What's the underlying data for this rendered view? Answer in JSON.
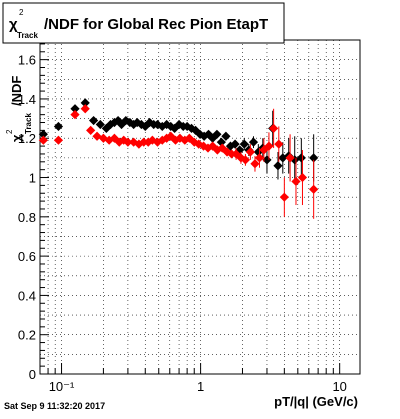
{
  "page": {
    "footer_text": "Sat Sep  9 11:32:20 2017"
  },
  "chart_data": {
    "type": "scatter",
    "title": {
      "chi": "χ",
      "sup": "2",
      "sub": "Track",
      "rest": "/NDF for Global Rec Pion EtapT"
    },
    "xlabel": "pT/|q| (GeV/c)",
    "ylabel": {
      "chi": "χ",
      "sup": "2",
      "sub": "Track",
      "rest": "/NDF"
    },
    "x_scale": "log",
    "xlim": [
      0.07,
      14
    ],
    "ylim": [
      0,
      1.7
    ],
    "grid": true,
    "x_ticks": [
      {
        "value": 0.1,
        "label": "10⁻¹"
      },
      {
        "value": 1,
        "label": "1"
      },
      {
        "value": 10,
        "label": "10"
      }
    ],
    "y_ticks": [
      {
        "value": 0,
        "label": "0"
      },
      {
        "value": 0.2,
        "label": "0.2"
      },
      {
        "value": 0.4,
        "label": "0.4"
      },
      {
        "value": 0.6,
        "label": "0.6"
      },
      {
        "value": 0.8,
        "label": "0.8"
      },
      {
        "value": 1.0,
        "label": "1"
      },
      {
        "value": 1.2,
        "label": "1.2"
      },
      {
        "value": 1.4,
        "label": "1.4"
      },
      {
        "value": 1.6,
        "label": "1.6"
      }
    ],
    "series": [
      {
        "color": "#000000",
        "marker": "diamond",
        "x": [
          0.074,
          0.095,
          0.125,
          0.148,
          0.17,
          0.19,
          0.21,
          0.225,
          0.24,
          0.255,
          0.27,
          0.29,
          0.31,
          0.33,
          0.35,
          0.375,
          0.4,
          0.43,
          0.46,
          0.49,
          0.53,
          0.57,
          0.61,
          0.65,
          0.7,
          0.75,
          0.8,
          0.86,
          0.92,
          0.99,
          1.06,
          1.14,
          1.22,
          1.31,
          1.41,
          1.52,
          1.64,
          1.77,
          1.91,
          2.06,
          2.22,
          2.4,
          2.6,
          2.8,
          3.0,
          3.3,
          3.6,
          3.9,
          4.3,
          4.75,
          5.3,
          6.5
        ],
        "y": [
          1.22,
          1.26,
          1.35,
          1.38,
          1.29,
          1.27,
          1.25,
          1.27,
          1.28,
          1.29,
          1.27,
          1.29,
          1.28,
          1.27,
          1.28,
          1.27,
          1.26,
          1.28,
          1.27,
          1.27,
          1.26,
          1.27,
          1.26,
          1.25,
          1.27,
          1.26,
          1.26,
          1.25,
          1.24,
          1.22,
          1.21,
          1.22,
          1.2,
          1.22,
          1.18,
          1.21,
          1.16,
          1.17,
          1.14,
          1.17,
          1.14,
          1.18,
          1.13,
          1.15,
          1.09,
          1.25,
          1.06,
          1.1,
          1.11,
          1.09,
          1.1,
          1.1
        ],
        "err": [
          0.01,
          0.01,
          0.01,
          0.01,
          0.01,
          0.01,
          0.01,
          0.01,
          0.01,
          0.01,
          0.01,
          0.01,
          0.01,
          0.01,
          0.01,
          0.01,
          0.01,
          0.01,
          0.01,
          0.01,
          0.01,
          0.01,
          0.01,
          0.01,
          0.01,
          0.01,
          0.01,
          0.01,
          0.01,
          0.01,
          0.01,
          0.01,
          0.01,
          0.01,
          0.02,
          0.02,
          0.02,
          0.02,
          0.02,
          0.03,
          0.03,
          0.03,
          0.04,
          0.05,
          0.07,
          0.09,
          0.07,
          0.08,
          0.09,
          0.12,
          0.1,
          0.12
        ]
      },
      {
        "color": "#ff0000",
        "marker": "diamond",
        "x": [
          0.074,
          0.095,
          0.125,
          0.148,
          0.162,
          0.18,
          0.2,
          0.22,
          0.24,
          0.26,
          0.28,
          0.3,
          0.33,
          0.36,
          0.39,
          0.42,
          0.45,
          0.49,
          0.53,
          0.57,
          0.61,
          0.66,
          0.71,
          0.77,
          0.83,
          0.9,
          0.97,
          1.05,
          1.13,
          1.22,
          1.32,
          1.43,
          1.55,
          1.67,
          1.8,
          1.95,
          2.1,
          2.28,
          2.46,
          2.65,
          2.85,
          3.1,
          3.35,
          3.65,
          4.0,
          4.4,
          4.85,
          5.4,
          6.5
        ],
        "y": [
          1.19,
          1.19,
          1.32,
          1.35,
          1.24,
          1.21,
          1.2,
          1.19,
          1.2,
          1.18,
          1.19,
          1.18,
          1.18,
          1.17,
          1.18,
          1.18,
          1.19,
          1.18,
          1.19,
          1.2,
          1.21,
          1.19,
          1.2,
          1.19,
          1.2,
          1.18,
          1.17,
          1.16,
          1.15,
          1.16,
          1.14,
          1.15,
          1.13,
          1.12,
          1.12,
          1.1,
          1.09,
          1.13,
          1.07,
          1.1,
          1.14,
          1.16,
          1.25,
          1.17,
          0.9,
          1.1,
          0.98,
          1.0,
          0.94
        ],
        "err": [
          0.01,
          0.01,
          0.01,
          0.01,
          0.01,
          0.01,
          0.01,
          0.01,
          0.01,
          0.01,
          0.01,
          0.01,
          0.01,
          0.01,
          0.01,
          0.01,
          0.01,
          0.01,
          0.01,
          0.01,
          0.01,
          0.01,
          0.01,
          0.01,
          0.01,
          0.01,
          0.01,
          0.01,
          0.01,
          0.02,
          0.02,
          0.02,
          0.02,
          0.02,
          0.03,
          0.03,
          0.03,
          0.04,
          0.04,
          0.05,
          0.06,
          0.07,
          0.1,
          0.09,
          0.1,
          0.12,
          0.12,
          0.14,
          0.15
        ]
      }
    ]
  }
}
